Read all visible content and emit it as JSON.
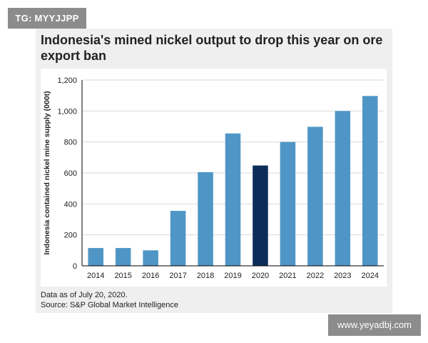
{
  "watermark_top": "TG: MYYJJPP",
  "watermark_bottom": "www.yeyadbj.com",
  "footnote": {
    "line1": "Data as of July 20, 2020.",
    "line2": "Source: S&P Global Market Intelligence"
  },
  "colors": {
    "bar": "#4f96c6",
    "highlight": "#0c2d59",
    "grid": "#d9d9d9",
    "axis": "#000000",
    "card": "#efefef"
  },
  "chart_data": {
    "type": "bar",
    "title": "Indonesia's mined nickel output to drop this year on ore export ban",
    "title_lines": [
      "Indonesia's mined nickel output to drop this year on ore",
      "export ban"
    ],
    "xlabel": "",
    "ylabel": "Indonesia contained nickel mine supply (000t)",
    "categories": [
      "2014",
      "2015",
      "2016",
      "2017",
      "2018",
      "2019",
      "2020",
      "2021",
      "2022",
      "2023",
      "2024"
    ],
    "values": [
      115,
      115,
      100,
      355,
      605,
      855,
      648,
      800,
      898,
      1000,
      1097
    ],
    "highlight_category": "2020",
    "ylim": [
      0,
      1200
    ],
    "yticks": [
      0,
      200,
      400,
      600,
      800,
      1000,
      1200
    ],
    "ytick_labels": [
      "0",
      "200",
      "400",
      "600",
      "800",
      "1,000",
      "1,200"
    ],
    "grid": true
  }
}
